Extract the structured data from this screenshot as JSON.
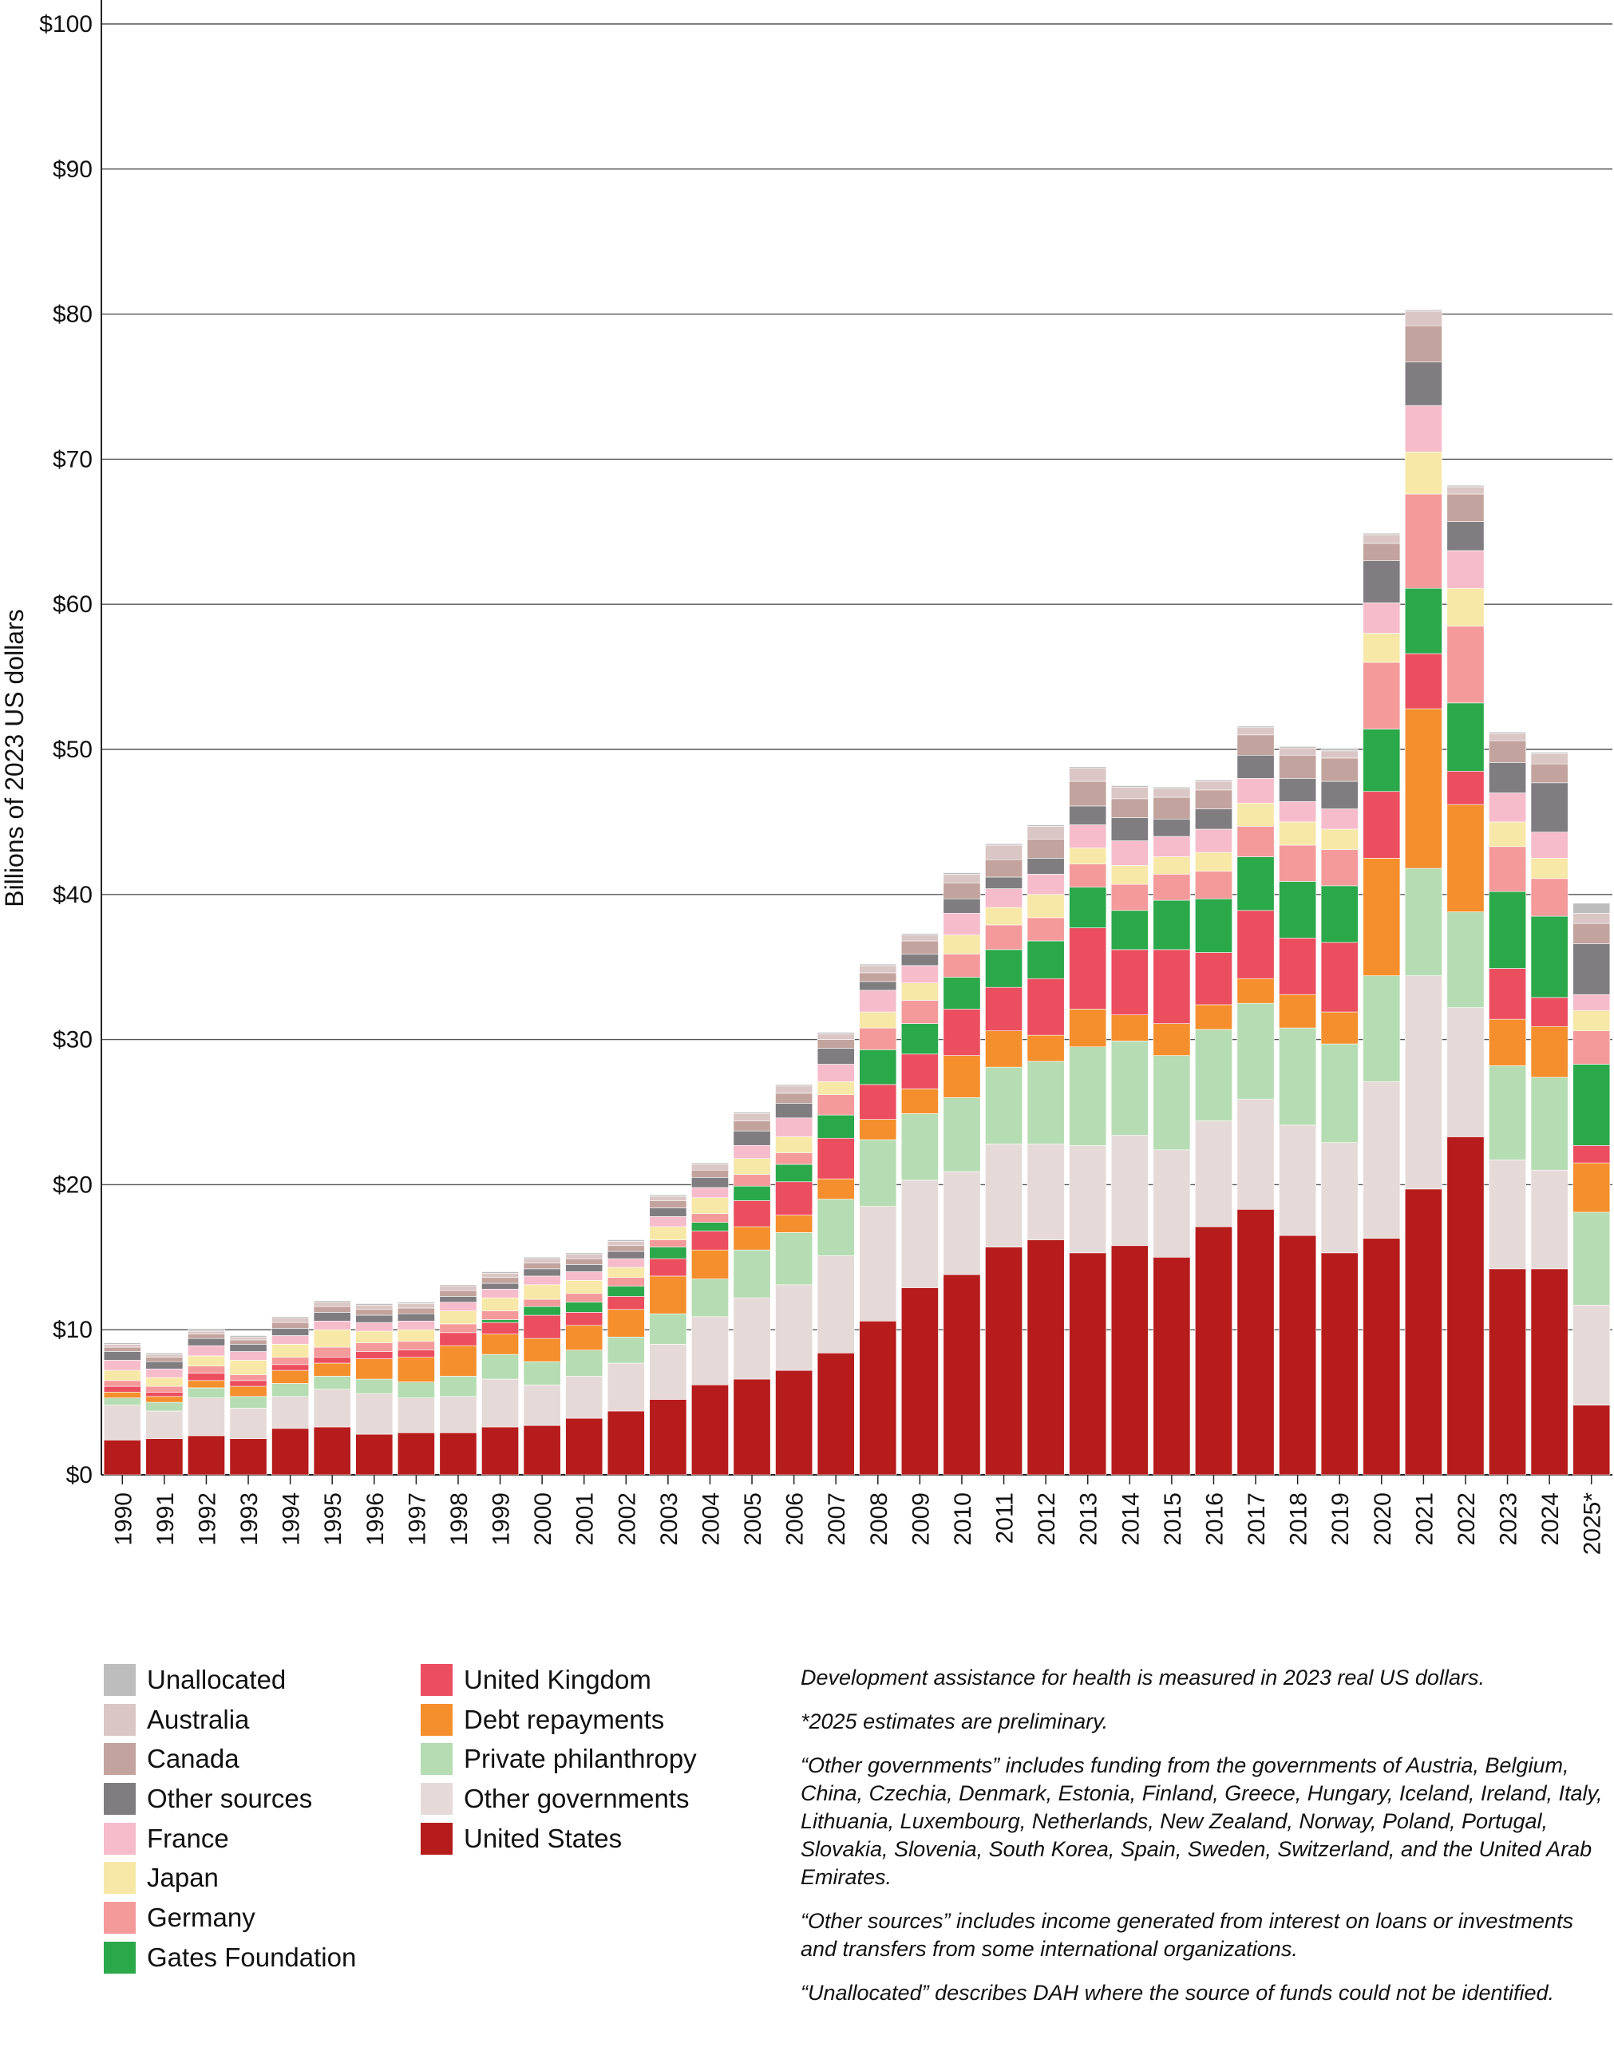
{
  "chart_data": {
    "type": "bar",
    "stacked": true,
    "title": "",
    "xlabel": "",
    "ylabel": "Billions of 2023 US dollars",
    "ylim": [
      0,
      100
    ],
    "yticks": [
      0,
      10,
      20,
      30,
      40,
      50,
      60,
      70,
      80,
      90,
      100
    ],
    "ytick_labels": [
      "$0",
      "$10",
      "$20",
      "$30",
      "$40",
      "$50",
      "$60",
      "$70",
      "$80",
      "$90",
      "$100"
    ],
    "grid": true,
    "legend_position": "bottom-left",
    "categories": [
      "1990",
      "1991",
      "1992",
      "1993",
      "1994",
      "1995",
      "1996",
      "1997",
      "1998",
      "1999",
      "2000",
      "2001",
      "2002",
      "2003",
      "2004",
      "2005",
      "2006",
      "2007",
      "2008",
      "2009",
      "2010",
      "2011",
      "2012",
      "2013",
      "2014",
      "2015",
      "2016",
      "2017",
      "2018",
      "2019",
      "2020",
      "2021",
      "2022",
      "2023",
      "2024",
      "2025*"
    ],
    "series": [
      {
        "name": "United States",
        "color": "#b71c1c",
        "values": [
          2.4,
          2.5,
          2.7,
          2.5,
          3.2,
          3.3,
          2.8,
          2.9,
          2.9,
          3.3,
          3.4,
          3.9,
          4.4,
          5.2,
          6.2,
          6.6,
          7.2,
          8.4,
          10.6,
          12.9,
          13.8,
          15.7,
          16.2,
          15.3,
          15.8,
          15.0,
          17.1,
          18.3,
          16.5,
          15.3,
          16.3,
          19.7,
          23.3,
          14.2,
          14.2,
          4.8
        ]
      },
      {
        "name": "Other governments",
        "color": "#e6dad8",
        "values": [
          2.4,
          1.9,
          2.6,
          2.1,
          2.2,
          2.6,
          2.8,
          2.4,
          2.5,
          3.3,
          2.8,
          2.9,
          3.3,
          3.8,
          4.7,
          5.6,
          5.9,
          6.7,
          7.9,
          7.4,
          7.1,
          7.1,
          6.6,
          7.4,
          7.6,
          7.4,
          7.3,
          7.6,
          7.6,
          7.6,
          10.8,
          14.7,
          8.9,
          7.5,
          6.8,
          6.9
        ]
      },
      {
        "name": "Private philanthropy",
        "color": "#b6dcb3",
        "values": [
          0.5,
          0.6,
          0.7,
          0.8,
          0.9,
          0.9,
          1.0,
          1.1,
          1.4,
          1.7,
          1.6,
          1.8,
          1.8,
          2.1,
          2.6,
          3.3,
          3.6,
          3.9,
          4.6,
          4.6,
          5.1,
          5.3,
          5.7,
          6.8,
          6.5,
          6.5,
          6.3,
          6.6,
          6.7,
          6.8,
          7.3,
          7.4,
          6.6,
          6.5,
          6.4,
          6.4
        ]
      },
      {
        "name": "Debt repayments",
        "color": "#f58f2e",
        "values": [
          0.4,
          0.4,
          0.5,
          0.7,
          0.9,
          0.9,
          1.4,
          1.7,
          2.1,
          1.4,
          1.6,
          1.7,
          1.9,
          2.6,
          2.0,
          1.6,
          1.2,
          1.4,
          1.4,
          1.7,
          2.9,
          2.5,
          1.8,
          2.6,
          1.8,
          2.2,
          1.7,
          1.7,
          2.3,
          2.2,
          8.1,
          11.0,
          7.4,
          3.2,
          3.5,
          3.4
        ]
      },
      {
        "name": "United Kingdom",
        "color": "#eb4f5f",
        "values": [
          0.4,
          0.3,
          0.5,
          0.4,
          0.4,
          0.4,
          0.5,
          0.5,
          0.9,
          0.8,
          1.6,
          0.9,
          0.9,
          1.2,
          1.3,
          1.8,
          2.3,
          2.8,
          2.4,
          2.4,
          3.2,
          3.0,
          3.9,
          5.6,
          4.5,
          5.1,
          3.6,
          4.7,
          3.9,
          4.8,
          4.6,
          3.8,
          2.3,
          3.5,
          2.0,
          1.2
        ]
      },
      {
        "name": "Gates Foundation",
        "color": "#2ba84a",
        "values": [
          0.0,
          0.0,
          0.0,
          0.0,
          0.0,
          0.0,
          0.0,
          0.0,
          0.0,
          0.2,
          0.6,
          0.7,
          0.7,
          0.8,
          0.6,
          1.0,
          1.2,
          1.6,
          2.4,
          2.1,
          2.2,
          2.6,
          2.6,
          2.8,
          2.7,
          3.4,
          3.7,
          3.7,
          3.9,
          3.9,
          4.3,
          4.5,
          4.7,
          5.3,
          5.6,
          5.6
        ]
      },
      {
        "name": "Germany",
        "color": "#f49a9a",
        "values": [
          0.4,
          0.4,
          0.5,
          0.4,
          0.5,
          0.7,
          0.6,
          0.6,
          0.6,
          0.6,
          0.5,
          0.6,
          0.6,
          0.5,
          0.6,
          0.8,
          0.8,
          1.4,
          1.5,
          1.6,
          1.6,
          1.7,
          1.6,
          1.6,
          1.8,
          1.8,
          1.9,
          2.1,
          2.5,
          2.5,
          4.6,
          6.5,
          5.3,
          3.1,
          2.6,
          2.3
        ]
      },
      {
        "name": "Japan",
        "color": "#f8e8a8",
        "values": [
          0.7,
          0.6,
          0.7,
          1.0,
          0.9,
          1.2,
          0.8,
          0.8,
          0.9,
          0.9,
          1.0,
          0.9,
          0.7,
          0.9,
          1.1,
          1.1,
          1.1,
          0.9,
          1.1,
          1.2,
          1.3,
          1.2,
          1.6,
          1.1,
          1.3,
          1.2,
          1.3,
          1.6,
          1.6,
          1.4,
          2.0,
          2.9,
          2.6,
          1.7,
          1.4,
          1.4
        ]
      },
      {
        "name": "France",
        "color": "#f7bccb",
        "values": [
          0.7,
          0.6,
          0.7,
          0.6,
          0.6,
          0.6,
          0.6,
          0.6,
          0.6,
          0.6,
          0.6,
          0.6,
          0.6,
          0.7,
          0.7,
          0.9,
          1.3,
          1.2,
          1.5,
          1.2,
          1.5,
          1.3,
          1.4,
          1.6,
          1.7,
          1.4,
          1.6,
          1.7,
          1.4,
          1.4,
          2.1,
          3.2,
          2.6,
          2.0,
          1.8,
          1.1
        ]
      },
      {
        "name": "Other sources",
        "color": "#7f7d80",
        "values": [
          0.6,
          0.5,
          0.5,
          0.5,
          0.5,
          0.6,
          0.5,
          0.5,
          0.4,
          0.4,
          0.5,
          0.5,
          0.5,
          0.6,
          0.7,
          1.0,
          1.0,
          1.1,
          0.6,
          0.8,
          1.0,
          0.8,
          1.1,
          1.3,
          1.6,
          1.2,
          1.4,
          1.6,
          1.6,
          1.9,
          2.9,
          3.0,
          2.0,
          2.1,
          3.4,
          3.5
        ]
      },
      {
        "name": "Canada",
        "color": "#c2a39d",
        "values": [
          0.3,
          0.3,
          0.3,
          0.3,
          0.4,
          0.4,
          0.4,
          0.4,
          0.4,
          0.4,
          0.4,
          0.4,
          0.4,
          0.5,
          0.5,
          0.7,
          0.7,
          0.6,
          0.6,
          0.9,
          1.1,
          1.2,
          1.3,
          1.7,
          1.3,
          1.5,
          1.3,
          1.4,
          1.6,
          1.6,
          1.2,
          2.5,
          1.9,
          1.5,
          1.3,
          1.4
        ]
      },
      {
        "name": "Australia",
        "color": "#dbc6c6",
        "values": [
          0.2,
          0.2,
          0.2,
          0.2,
          0.3,
          0.3,
          0.3,
          0.3,
          0.3,
          0.3,
          0.3,
          0.3,
          0.3,
          0.3,
          0.4,
          0.5,
          0.5,
          0.4,
          0.5,
          0.4,
          0.6,
          1.0,
          0.9,
          0.9,
          0.8,
          0.6,
          0.6,
          0.5,
          0.5,
          0.5,
          0.6,
          1.0,
          0.5,
          0.5,
          0.7,
          0.7
        ]
      },
      {
        "name": "Unallocated",
        "color": "#bdbdbd",
        "values": [
          0.1,
          0.1,
          0.1,
          0.1,
          0.1,
          0.1,
          0.1,
          0.1,
          0.1,
          0.1,
          0.1,
          0.1,
          0.1,
          0.1,
          0.1,
          0.1,
          0.1,
          0.1,
          0.1,
          0.1,
          0.1,
          0.1,
          0.1,
          0.1,
          0.1,
          0.1,
          0.1,
          0.1,
          0.1,
          0.1,
          0.1,
          0.1,
          0.1,
          0.1,
          0.1,
          0.7
        ]
      }
    ]
  },
  "legend": {
    "column1": [
      {
        "label": "Unallocated",
        "color": "#bdbdbd"
      },
      {
        "label": "Australia",
        "color": "#dbc6c6"
      },
      {
        "label": "Canada",
        "color": "#c2a39d"
      },
      {
        "label": "Other sources",
        "color": "#7f7d80"
      },
      {
        "label": "France",
        "color": "#f7bccb"
      },
      {
        "label": "Japan",
        "color": "#f8e8a8"
      },
      {
        "label": "Germany",
        "color": "#f49a9a"
      },
      {
        "label": "Gates Foundation",
        "color": "#2ba84a"
      }
    ],
    "column2": [
      {
        "label": "United Kingdom",
        "color": "#eb4f5f"
      },
      {
        "label": "Debt repayments",
        "color": "#f58f2e"
      },
      {
        "label": "Private philanthropy",
        "color": "#b6dcb3"
      },
      {
        "label": "Other governments",
        "color": "#e6dad8"
      },
      {
        "label": "United States",
        "color": "#b71c1c"
      }
    ]
  },
  "notes": {
    "note1": "Development assistance for health is measured in 2023 real US dollars.",
    "note2": "*2025 estimates are preliminary.",
    "note3": "“Other governments” includes funding from the governments of Austria, Belgium, China, Czechia, Denmark, Estonia, Finland, Greece, Hungary, Iceland, Ireland, Italy, Lithuania, Luxembourg, Netherlands, New Zealand, Norway, Poland, Portugal, Slovakia, Slovenia, South Korea, Spain, Sweden, Switzerland, and the United Arab Emirates.",
    "note4": "“Other sources” includes income generated from interest on loans or investments and transfers from some international organizations.",
    "note5": "“Unallocated” describes DAH where the source of funds could not be identified."
  }
}
